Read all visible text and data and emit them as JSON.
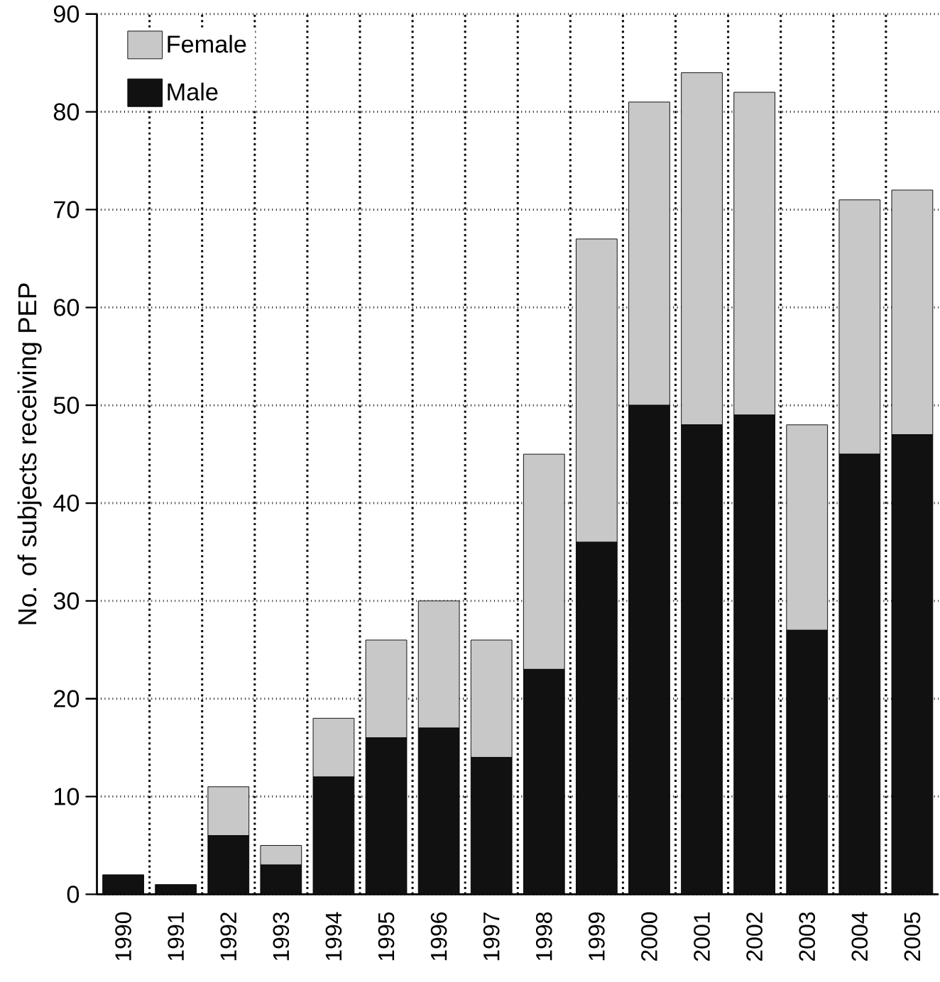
{
  "chart_data": {
    "type": "bar",
    "stacked": true,
    "ylabel": "No. of subjects receiving PEP",
    "categories": [
      "1990",
      "1991",
      "1992",
      "1993",
      "1994",
      "1995",
      "1996",
      "1997",
      "1998",
      "1999",
      "2000",
      "2001",
      "2002",
      "2003",
      "2004",
      "2005"
    ],
    "series": [
      {
        "name": "Male",
        "color": "#111111",
        "values": [
          2,
          1,
          6,
          3,
          12,
          16,
          17,
          14,
          23,
          36,
          50,
          48,
          49,
          27,
          45,
          47
        ]
      },
      {
        "name": "Female",
        "color": "#c8c8c8",
        "values": [
          0,
          0,
          5,
          2,
          6,
          10,
          13,
          12,
          22,
          31,
          31,
          36,
          33,
          21,
          26,
          25
        ]
      }
    ],
    "ylim": [
      0,
      90
    ],
    "yticks": [
      0,
      10,
      20,
      30,
      40,
      50,
      60,
      70,
      80,
      90
    ],
    "grid": true,
    "legend": "top left"
  }
}
